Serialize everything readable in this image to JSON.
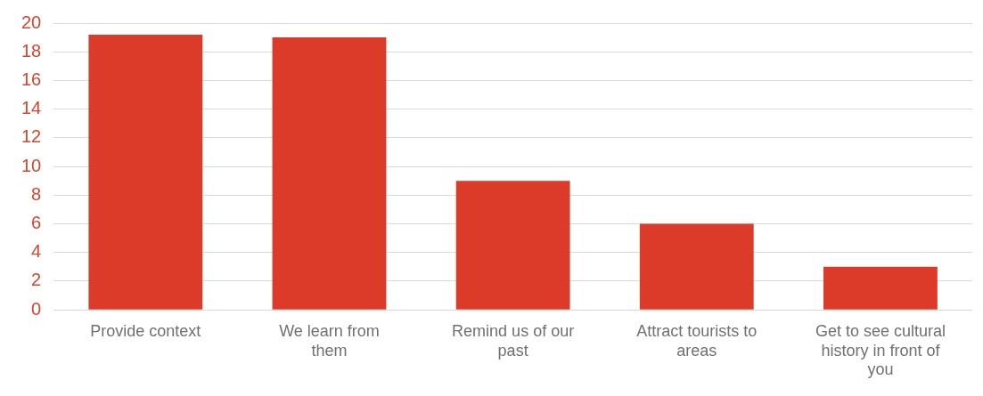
{
  "chart_data": {
    "type": "bar",
    "categories": [
      "Provide context",
      "We learn from them",
      "Remind us of our past",
      "Attract tourists to areas",
      "Get to see cultural history in front of you"
    ],
    "values": [
      19.2,
      19,
      9,
      6,
      3
    ],
    "color": "#db3b28",
    "ylim": [
      0,
      20
    ],
    "yticks": [
      0,
      2,
      4,
      6,
      8,
      10,
      12,
      14,
      16,
      18,
      20
    ],
    "grid": "y"
  }
}
